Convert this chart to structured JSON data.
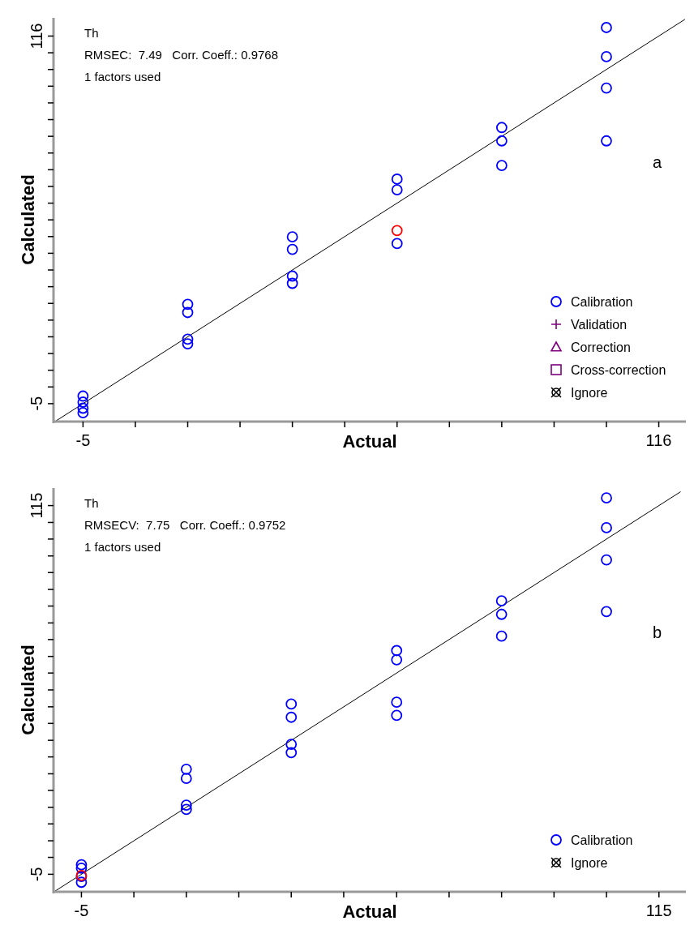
{
  "chart_data": [
    {
      "type": "scatter",
      "title": "a",
      "xlabel": "Actual",
      "ylabel": "Calculated",
      "annotations": [
        "Th",
        "RMSEC:  7.49   Corr. Coeff.: 0.9768",
        "1 factors used"
      ],
      "xlim": [
        -11.2,
        121.7
      ],
      "ylim": [
        -10.9,
        122
      ],
      "xticks": [
        -5,
        {
          "value": 6,
          "label": null
        },
        {
          "value": 17,
          "label": null
        },
        {
          "value": 28,
          "label": null
        },
        {
          "value": 39,
          "label": null
        },
        {
          "value": 50,
          "label": null
        },
        {
          "value": 61,
          "label": null
        },
        {
          "value": 72,
          "label": null
        },
        {
          "value": 83,
          "label": null
        },
        {
          "value": 94,
          "label": null
        },
        {
          "value": 105,
          "label": null
        },
        116
      ],
      "yticks": [
        -5,
        {
          "value": 0.5,
          "label": null
        },
        {
          "value": 6,
          "label": null
        },
        {
          "value": 11.5,
          "label": null
        },
        {
          "value": 17,
          "label": null
        },
        {
          "value": 22.5,
          "label": null
        },
        {
          "value": 28,
          "label": null
        },
        {
          "value": 33.5,
          "label": null
        },
        {
          "value": 39,
          "label": null
        },
        {
          "value": 44.5,
          "label": null
        },
        {
          "value": 50,
          "label": null
        },
        {
          "value": 55.5,
          "label": null
        },
        {
          "value": 61,
          "label": null
        },
        {
          "value": 66.5,
          "label": null
        },
        {
          "value": 72,
          "label": null
        },
        {
          "value": 77.5,
          "label": null
        },
        {
          "value": 83,
          "label": null
        },
        {
          "value": 88.5,
          "label": null
        },
        {
          "value": 94,
          "label": null
        },
        {
          "value": 99.5,
          "label": null
        },
        {
          "value": 105,
          "label": null
        },
        {
          "value": 110.5,
          "label": null
        },
        116
      ],
      "legend": "bottom right",
      "series": [
        {
          "type": "line",
          "color": "#000000",
          "x": [
            -10.9,
            121.5
          ],
          "values": [
            -10.9,
            121.5
          ]
        },
        {
          "name": "Calibration",
          "color": "#0000ff",
          "marker": "circle",
          "x": [
            -5,
            -5,
            -5,
            -5,
            17,
            17,
            17,
            17,
            39,
            39,
            39,
            39,
            61,
            61,
            61,
            83,
            83,
            83,
            105,
            105,
            105,
            105
          ],
          "values": [
            -2.5,
            -4.5,
            -6.5,
            -8,
            27.7,
            25,
            16.2,
            14.7,
            49.9,
            45.8,
            37,
            34.6,
            68.9,
            65.4,
            47.7,
            85.9,
            81.5,
            73.4,
            118.8,
            109.2,
            98.9,
            81.5
          ]
        },
        {
          "color": "#ff0000",
          "marker": "circle",
          "x": [
            61
          ],
          "values": [
            52
          ]
        },
        {
          "name": "Validation",
          "color": "#800080",
          "marker": "cross"
        },
        {
          "name": "Correction",
          "color": "#800080",
          "marker": "triangle"
        },
        {
          "name": "Cross-correction",
          "color": "#800080",
          "marker": "square"
        },
        {
          "name": "Ignore",
          "color": "#000000",
          "marker": "circle-cross"
        }
      ]
    },
    {
      "type": "scatter",
      "title": "b",
      "xlabel": "Actual",
      "ylabel": "Calculated",
      "annotations": [
        "Th",
        "RMSECV:  7.75   Corr. Coeff.: 0.9752",
        "1 factors used"
      ],
      "xlim": [
        -10.8,
        120.6
      ],
      "ylim": [
        -10.7,
        120.7
      ],
      "xticks": [
        -5,
        {
          "value": 5.9,
          "label": null
        },
        {
          "value": 16.8,
          "label": null
        },
        {
          "value": 27.7,
          "label": null
        },
        {
          "value": 38.6,
          "label": null
        },
        {
          "value": 49.5,
          "label": null
        },
        {
          "value": 60.5,
          "label": null
        },
        {
          "value": 71.4,
          "label": null
        },
        {
          "value": 82.3,
          "label": null
        },
        {
          "value": 93.2,
          "label": null
        },
        {
          "value": 104.1,
          "label": null
        },
        115
      ],
      "yticks": [
        -5,
        {
          "value": 0.5,
          "label": null
        },
        {
          "value": 5.9,
          "label": null
        },
        {
          "value": 11.4,
          "label": null
        },
        {
          "value": 16.8,
          "label": null
        },
        {
          "value": 22.3,
          "label": null
        },
        {
          "value": 27.7,
          "label": null
        },
        {
          "value": 33.2,
          "label": null
        },
        {
          "value": 38.6,
          "label": null
        },
        {
          "value": 44.1,
          "label": null
        },
        {
          "value": 49.5,
          "label": null
        },
        {
          "value": 55,
          "label": null
        },
        {
          "value": 60.5,
          "label": null
        },
        {
          "value": 65.9,
          "label": null
        },
        {
          "value": 71.4,
          "label": null
        },
        {
          "value": 76.8,
          "label": null
        },
        {
          "value": 82.3,
          "label": null
        },
        {
          "value": 87.7,
          "label": null
        },
        {
          "value": 93.2,
          "label": null
        },
        {
          "value": 98.6,
          "label": null
        },
        {
          "value": 104.1,
          "label": null
        },
        {
          "value": 109.5,
          "label": null
        },
        115
      ],
      "legend": "bottom right",
      "series": [
        {
          "type": "line",
          "color": "#000000",
          "x": [
            -10.5,
            119.5
          ],
          "values": [
            -10.5,
            119.5
          ]
        },
        {
          "name": "Calibration",
          "color": "#0000ff",
          "marker": "circle",
          "x": [
            -5,
            -5,
            -5,
            -5,
            16.8,
            16.8,
            16.8,
            16.8,
            38.6,
            38.6,
            38.6,
            38.6,
            60.5,
            60.5,
            60.5,
            60.5,
            82.3,
            82.3,
            82.3,
            104.1,
            104.1,
            104.1,
            104.1
          ],
          "values": [
            -1.9,
            -3,
            -5.7,
            -7.6,
            29.2,
            26.2,
            17.5,
            16.1,
            50.4,
            46.1,
            37.3,
            34.6,
            67.8,
            64.8,
            51,
            46.7,
            84,
            79.6,
            72.5,
            117.5,
            107.8,
            97.3,
            80.5
          ]
        },
        {
          "color": "#ff0000",
          "marker": "circle",
          "x": [
            -5
          ],
          "values": [
            -5.4
          ]
        },
        {
          "name": "Ignore",
          "color": "#000000",
          "marker": "circle-cross"
        }
      ]
    }
  ]
}
